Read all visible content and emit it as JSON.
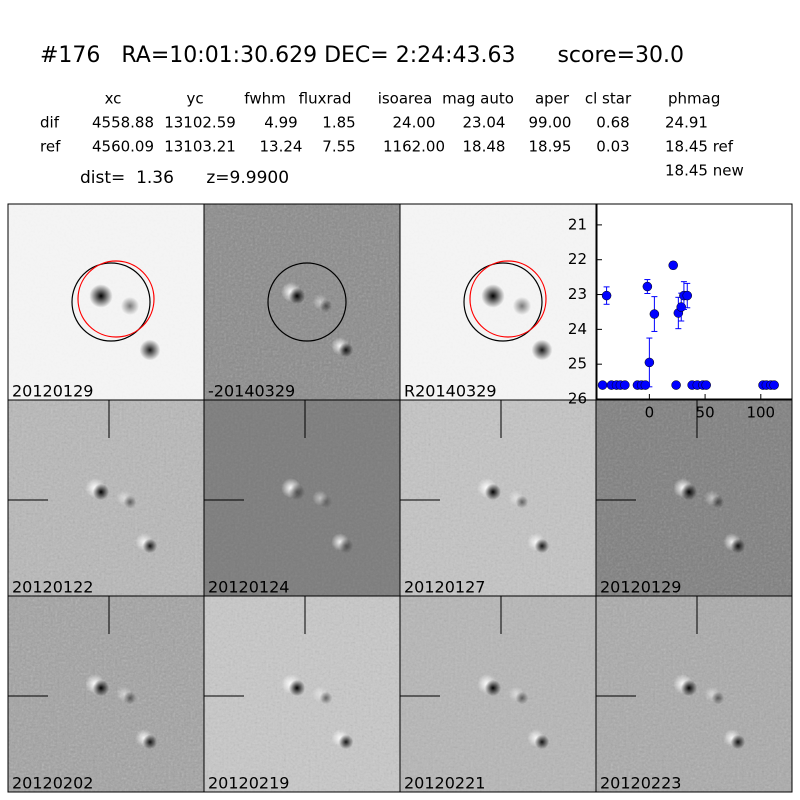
{
  "header": {
    "title": "#176   RA=10:01:30.629 DEC= 2:24:43.63      score=30.0"
  },
  "table": {
    "columns": [
      "xc",
      "yc",
      "fwhm",
      "fluxrad",
      "isoarea",
      "mag auto",
      "aper",
      "cl star",
      "phmag"
    ],
    "rows": [
      [
        "dif",
        "4558.88",
        "13102.59",
        "4.99",
        "1.85",
        "24.00",
        "23.04",
        "99.00",
        "0.68",
        "24.91"
      ],
      [
        "ref",
        "4560.09",
        "13103.21",
        "13.24",
        "7.55",
        "1162.00",
        "18.48",
        "18.95",
        "0.03",
        "18.45 ref"
      ]
    ],
    "extra": "18.45 new"
  },
  "summary": "dist=  1.36      z=9.9900",
  "panels": [
    {
      "label": "20120129"
    },
    {
      "label": "-20140329"
    },
    {
      "label": "R20140329"
    },
    {
      "label": "20120122"
    },
    {
      "label": "20120124"
    },
    {
      "label": "20120127"
    },
    {
      "label": "20120129",
      "label_color": "#ff0000"
    },
    {
      "label": "20120202"
    },
    {
      "label": "20120219"
    },
    {
      "label": "20120221"
    },
    {
      "label": "20120223"
    }
  ],
  "chart_data": {
    "type": "scatter",
    "color": "#0000ff",
    "x": [
      -42,
      -38.4,
      -34,
      -29.5,
      -26,
      -22,
      -10.7,
      -7,
      -3.6,
      -1.8,
      0,
      4.5,
      21.4,
      24,
      26,
      28.6,
      31,
      34,
      38.4,
      43,
      48,
      51,
      102,
      105,
      109,
      112
    ],
    "values": [
      25.6,
      23.03,
      25.6,
      25.6,
      25.6,
      25.6,
      25.6,
      25.6,
      25.6,
      22.77,
      24.95,
      23.56,
      22.16,
      25.6,
      23.53,
      23.36,
      23.03,
      23.03,
      25.6,
      25.6,
      25.6,
      25.6,
      25.6,
      25.6,
      25.6,
      25.6
    ],
    "errors": [
      null,
      0.25,
      null,
      null,
      null,
      null,
      null,
      null,
      null,
      0.2,
      0.7,
      0.5,
      0.1,
      null,
      0.45,
      0.4,
      0.4,
      0.35,
      null,
      null,
      null,
      null,
      null,
      null,
      null,
      null
    ],
    "xlim": [
      -47,
      128
    ],
    "ylim": [
      26,
      20.4
    ],
    "xticks": [
      0,
      50,
      100
    ],
    "yticks": [
      21,
      22,
      23,
      24,
      25,
      26
    ]
  }
}
